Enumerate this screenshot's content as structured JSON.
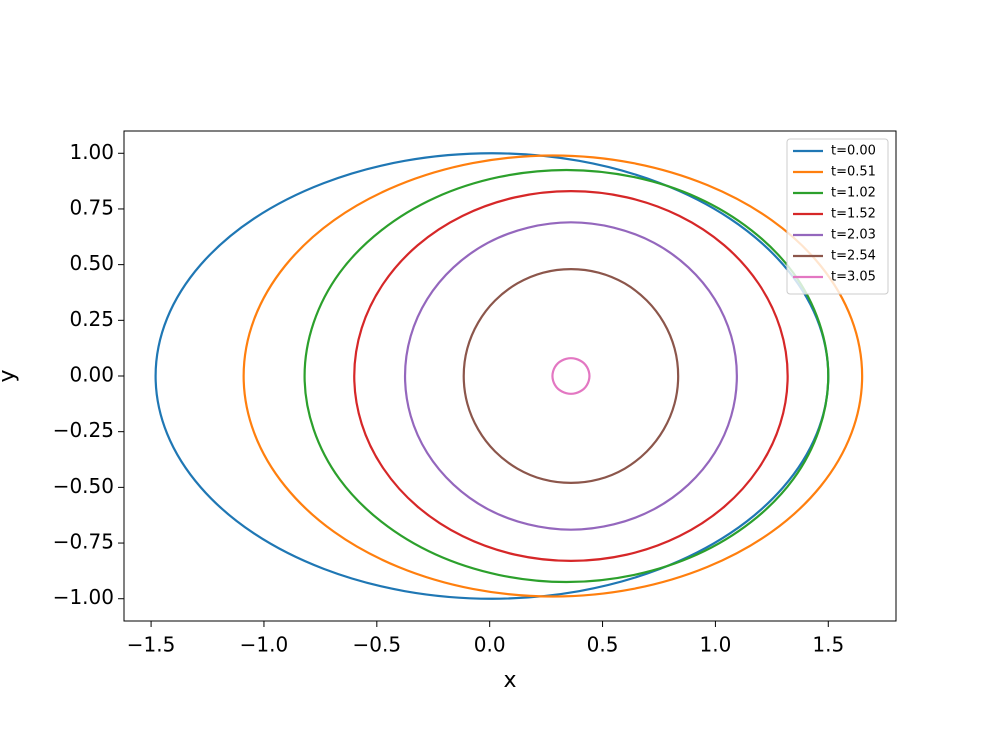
{
  "chart_data": {
    "type": "line",
    "xlabel": "x",
    "ylabel": "y",
    "xlim": [
      -1.62,
      1.8
    ],
    "ylim": [
      -1.1,
      1.1
    ],
    "xticks": [
      {
        "value": -1.5,
        "label": "−1.5"
      },
      {
        "value": -1.0,
        "label": "−1.0"
      },
      {
        "value": -0.5,
        "label": "−0.5"
      },
      {
        "value": 0,
        "label": "0.0"
      },
      {
        "value": 0.5,
        "label": "0.5"
      },
      {
        "value": 1.0,
        "label": "1.0"
      },
      {
        "value": 1.5,
        "label": "1.5"
      }
    ],
    "yticks": [
      {
        "value": 1,
        "label": "1.00"
      },
      {
        "value": 0.75,
        "label": "0.75"
      },
      {
        "value": 0.5,
        "label": "0.50"
      },
      {
        "value": 0.25,
        "label": "0.25"
      },
      {
        "value": 0,
        "label": "0.00"
      },
      {
        "value": -0.25,
        "label": "−0.25"
      },
      {
        "value": -0.5,
        "label": "−0.50"
      },
      {
        "value": -0.75,
        "label": "−0.75"
      },
      {
        "value": -1,
        "label": "−1.00"
      }
    ],
    "legend": "upper right",
    "grid": false,
    "series": [
      {
        "name": "t=0.00",
        "color": "#1f77b4",
        "x": [
          1.5,
          1.449,
          1.3,
          1.064,
          0.755,
          0.396,
          0.01,
          -0.376,
          -0.735,
          -1.044,
          -1.28,
          -1.429,
          -1.48,
          -1.429,
          -1.28,
          -1.044,
          -0.735,
          -0.376,
          0.01,
          0.396,
          0.755,
          1.064,
          1.3,
          1.449,
          1.5
        ],
        "values": [
          0,
          0.259,
          0.5,
          0.707,
          0.866,
          0.966,
          1,
          0.966,
          0.866,
          0.707,
          0.5,
          0.259,
          0,
          -0.259,
          -0.5,
          -0.707,
          -0.866,
          -0.966,
          -1,
          -0.966,
          -0.866,
          -0.707,
          -0.5,
          -0.259,
          0
        ]
      },
      {
        "name": "t=0.51",
        "color": "#ff7f0e",
        "x": [
          1.65,
          1.603,
          1.466,
          1.249,
          0.965,
          0.635,
          0.28,
          -0.075,
          -0.405,
          -0.689,
          -0.906,
          -1.043,
          -1.09,
          -1.043,
          -0.906,
          -0.689,
          -0.405,
          -0.075,
          0.28,
          0.635,
          0.965,
          1.249,
          1.466,
          1.603,
          1.65
        ],
        "values": [
          0,
          0.256,
          0.495,
          0.7,
          0.857,
          0.956,
          0.99,
          0.956,
          0.857,
          0.7,
          0.495,
          0.256,
          0,
          -0.256,
          -0.495,
          -0.7,
          -0.857,
          -0.956,
          -0.99,
          -0.956,
          -0.857,
          -0.7,
          -0.495,
          -0.256,
          0
        ]
      },
      {
        "name": "t=1.02",
        "color": "#2ca02c",
        "x": [
          1.5,
          1.46,
          1.345,
          1.16,
          0.92,
          0.64,
          0.34,
          0.04,
          -0.24,
          -0.48,
          -0.665,
          -0.78,
          -0.82,
          -0.78,
          -0.665,
          -0.48,
          -0.24,
          0.04,
          0.34,
          0.64,
          0.92,
          1.16,
          1.345,
          1.46,
          1.5
        ],
        "values": [
          0,
          0.239,
          0.463,
          0.654,
          0.801,
          0.893,
          0.925,
          0.893,
          0.801,
          0.654,
          0.463,
          0.239,
          0,
          -0.239,
          -0.463,
          -0.654,
          -0.801,
          -0.893,
          -0.925,
          -0.893,
          -0.801,
          -0.654,
          -0.463,
          -0.239,
          0
        ]
      },
      {
        "name": "t=1.52",
        "color": "#d62728",
        "x": [
          1.32,
          1.287,
          1.191,
          1.039,
          0.84,
          0.608,
          0.36,
          0.112,
          -0.12,
          -0.319,
          -0.471,
          -0.567,
          -0.6,
          -0.567,
          -0.471,
          -0.319,
          -0.12,
          0.112,
          0.36,
          0.608,
          0.84,
          1.039,
          1.191,
          1.287,
          1.32
        ],
        "values": [
          0,
          0.215,
          0.415,
          0.587,
          0.719,
          0.802,
          0.83,
          0.802,
          0.719,
          0.587,
          0.415,
          0.215,
          0,
          -0.215,
          -0.415,
          -0.587,
          -0.719,
          -0.802,
          -0.83,
          -0.802,
          -0.719,
          -0.587,
          -0.415,
          -0.215,
          0
        ]
      },
      {
        "name": "t=2.03",
        "color": "#9467bd",
        "x": [
          1.095,
          1.07,
          0.997,
          0.88,
          0.728,
          0.55,
          0.36,
          0.17,
          -0.008,
          -0.16,
          -0.277,
          -0.35,
          -0.375,
          -0.35,
          -0.277,
          -0.16,
          -0.008,
          0.17,
          0.36,
          0.55,
          0.728,
          0.88,
          0.997,
          1.07,
          1.095
        ],
        "values": [
          0,
          0.179,
          0.345,
          0.488,
          0.598,
          0.666,
          0.69,
          0.666,
          0.598,
          0.488,
          0.345,
          0.179,
          0,
          -0.179,
          -0.345,
          -0.488,
          -0.598,
          -0.666,
          -0.69,
          -0.666,
          -0.598,
          -0.488,
          -0.345,
          -0.179,
          0
        ]
      },
      {
        "name": "t=2.54",
        "color": "#8c564b",
        "x": [
          0.835,
          0.819,
          0.771,
          0.696,
          0.598,
          0.483,
          0.36,
          0.237,
          0.123,
          0.024,
          -0.051,
          -0.099,
          -0.115,
          -0.099,
          -0.051,
          0.024,
          0.123,
          0.237,
          0.36,
          0.483,
          0.598,
          0.696,
          0.771,
          0.819,
          0.835
        ],
        "values": [
          0,
          0.124,
          0.24,
          0.339,
          0.416,
          0.464,
          0.48,
          0.464,
          0.416,
          0.339,
          0.24,
          0.124,
          0,
          -0.124,
          -0.24,
          -0.339,
          -0.416,
          -0.464,
          -0.48,
          -0.464,
          -0.416,
          -0.339,
          -0.24,
          -0.124,
          0
        ]
      },
      {
        "name": "t=3.05",
        "color": "#e377c2",
        "x": [
          0.442,
          0.439,
          0.431,
          0.418,
          0.401,
          0.381,
          0.36,
          0.339,
          0.319,
          0.302,
          0.289,
          0.281,
          0.278,
          0.281,
          0.289,
          0.302,
          0.319,
          0.339,
          0.36,
          0.381,
          0.401,
          0.418,
          0.431,
          0.439,
          0.442
        ],
        "values": [
          0,
          0.021,
          0.04,
          0.057,
          0.069,
          0.077,
          0.08,
          0.077,
          0.069,
          0.057,
          0.04,
          0.021,
          0,
          -0.021,
          -0.04,
          -0.057,
          -0.069,
          -0.077,
          -0.08,
          -0.077,
          -0.069,
          -0.057,
          -0.04,
          -0.021,
          0
        ]
      }
    ]
  }
}
